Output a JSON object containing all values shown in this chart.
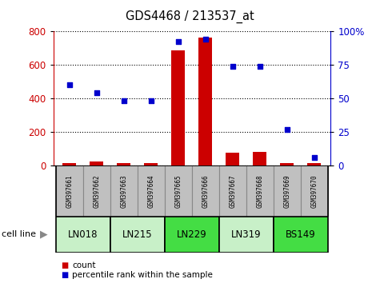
{
  "title": "GDS4468 / 213537_at",
  "samples": [
    "GSM397661",
    "GSM397662",
    "GSM397663",
    "GSM397664",
    "GSM397665",
    "GSM397666",
    "GSM397667",
    "GSM397668",
    "GSM397669",
    "GSM397670"
  ],
  "cell_lines": [
    {
      "name": "LN018",
      "samples": [
        0,
        1
      ],
      "color": "#c8f0c8"
    },
    {
      "name": "LN215",
      "samples": [
        2,
        3
      ],
      "color": "#c8f0c8"
    },
    {
      "name": "LN229",
      "samples": [
        4,
        5
      ],
      "color": "#44dd44"
    },
    {
      "name": "LN319",
      "samples": [
        6,
        7
      ],
      "color": "#c8f0c8"
    },
    {
      "name": "BS149",
      "samples": [
        8,
        9
      ],
      "color": "#44dd44"
    }
  ],
  "count_values": [
    15,
    22,
    15,
    15,
    685,
    760,
    75,
    80,
    15,
    15
  ],
  "percentile_values": [
    60,
    54,
    48,
    48,
    92,
    94,
    74,
    74,
    27,
    6
  ],
  "bar_color": "#cc0000",
  "dot_color": "#0000cc",
  "left_ylim": [
    0,
    800
  ],
  "right_ylim": [
    0,
    100
  ],
  "left_yticks": [
    0,
    200,
    400,
    600,
    800
  ],
  "right_yticks": [
    0,
    25,
    50,
    75,
    100
  ],
  "right_yticklabels": [
    "0",
    "25",
    "50",
    "75",
    "100%"
  ],
  "legend_count_label": "count",
  "legend_percentile_label": "percentile rank within the sample",
  "cell_line_label": "cell line",
  "sample_bg_color": "#c0c0c0",
  "background_color": "#ffffff"
}
